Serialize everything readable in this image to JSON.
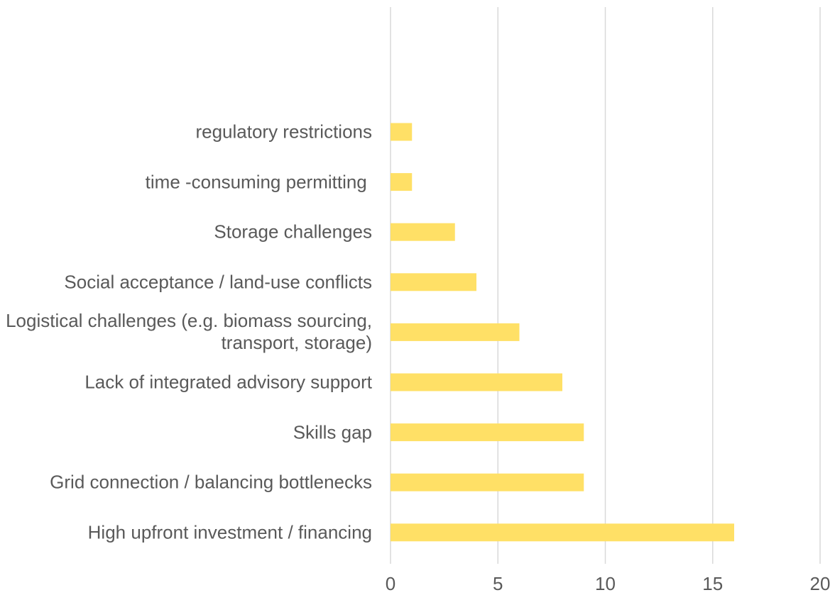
{
  "chart_data": {
    "type": "barh",
    "categories": [
      "regulatory restrictions",
      "time -consuming permitting ",
      "Storage challenges",
      "Social acceptance / land-use conflicts",
      "Logistical challenges (e.g. biomass sourcing, transport, storage)",
      "Lack of integrated advisory support",
      "Skills gap",
      "Grid connection / balancing bottlenecks",
      "High upfront investment / financing"
    ],
    "values": [
      1,
      1,
      3,
      4,
      6,
      8,
      9,
      9,
      16
    ],
    "color": "#ffe066",
    "xlim": [
      0,
      20
    ],
    "xticks": [
      0,
      5,
      10,
      15,
      20
    ],
    "grid": true
  }
}
